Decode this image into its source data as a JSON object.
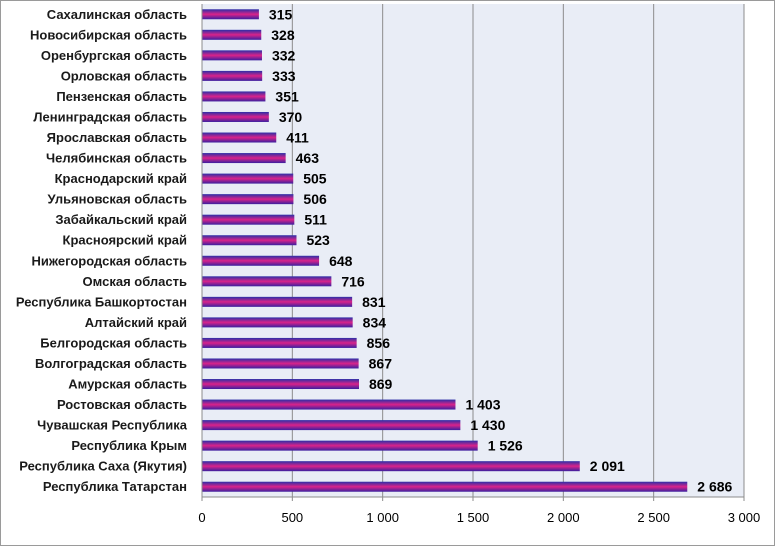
{
  "chart_data": {
    "type": "bar",
    "orientation": "horizontal",
    "categories": [
      "Сахалинская область",
      "Новосибирская область",
      "Оренбургская область",
      "Орловская область",
      "Пензенская область",
      "Ленинградская область",
      "Ярославская область",
      "Челябинская область",
      "Краснодарский край",
      "Ульяновская область",
      "Забайкальский край",
      "Красноярский край",
      "Нижегородская область",
      "Омская область",
      "Республика Башкортостан",
      "Алтайский край",
      "Белгородская область",
      "Волгоградская область",
      "Амурская область",
      "Ростовская область",
      "Чувашская Республика",
      "Республика Крым",
      "Республика Саха (Якутия)",
      "Республика Татарстан"
    ],
    "values": [
      315,
      328,
      332,
      333,
      351,
      370,
      411,
      463,
      505,
      506,
      511,
      523,
      648,
      716,
      831,
      834,
      856,
      867,
      869,
      1403,
      1430,
      1526,
      2091,
      2686
    ],
    "value_labels": [
      "315",
      "328",
      "332",
      "333",
      "351",
      "370",
      "411",
      "463",
      "505",
      "506",
      "511",
      "523",
      "648",
      "716",
      "831",
      "834",
      "856",
      "867",
      "869",
      "1 403",
      "1 430",
      "1 526",
      "2 091",
      "2 686"
    ],
    "xticks": [
      0,
      500,
      1000,
      1500,
      2000,
      2500,
      3000
    ],
    "xtick_labels": [
      "0",
      "500",
      "1 000",
      "1 500",
      "2 000",
      "2 500",
      "3 000"
    ],
    "xlim": [
      0,
      3000
    ],
    "grid": true,
    "legend": false,
    "title": "",
    "xlabel": "",
    "ylabel": "",
    "colors": {
      "bar_top": "#2b2fa8",
      "bar_mid": "#d9238a",
      "bar_bottom": "#3a1fa0",
      "plot_background": "#e9edf6",
      "gridline": "#8c8c8c"
    }
  }
}
